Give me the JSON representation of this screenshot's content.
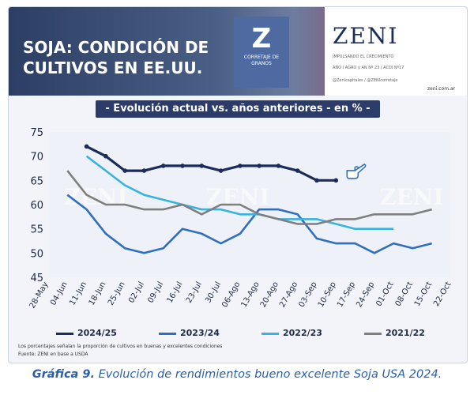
{
  "banner": {
    "title": "SOJA: CONDICIÓN DE\nCULTIVOS EN EE.UU.",
    "mid_logo": "Z",
    "mid_caption": "CORRETAJE DE GRANOS",
    "zeni_logo": "ZENI",
    "zeni_tagline": "IMPULSANDO EL CRECIMIENTO",
    "zeni_meta": "AÑO I AGRO y AN Nº 23 / ACDI Nº17",
    "zeni_social": "@Zenicapitales / @ZENIcorretaje",
    "zeni_url": "zeni.com.ar"
  },
  "chart_data": {
    "type": "line",
    "title": "- Evolución actual vs. años anteriores - en % -",
    "x": [
      "28-May",
      "04-Jun",
      "11-Jun",
      "18-Jun",
      "25-Jun",
      "02-Jul",
      "09-Jul",
      "16-Jul",
      "23-Jul",
      "30-Jul",
      "06-Ago",
      "13-Ago",
      "20-Ago",
      "27-Ago",
      "03-Sep",
      "10-Sep",
      "17-Sep",
      "24-Sep",
      "01-Oct",
      "08-Oct",
      "15-Oct",
      "22-Oct"
    ],
    "ylim": [
      45,
      75
    ],
    "yticks": [
      45,
      50,
      55,
      60,
      65,
      70,
      75
    ],
    "series": [
      {
        "name": "2024/25",
        "color": "#1a2c5a",
        "values": [
          null,
          null,
          72,
          70,
          67,
          67,
          68,
          68,
          68,
          67,
          68,
          68,
          68,
          67,
          65,
          65,
          null,
          null,
          null,
          null,
          null,
          null
        ]
      },
      {
        "name": "2023/24",
        "color": "#2e6fc0",
        "values": [
          null,
          62,
          59,
          54,
          51,
          50,
          51,
          55,
          54,
          52,
          54,
          59,
          59,
          58,
          53,
          52,
          52,
          50,
          52,
          51,
          52,
          null
        ]
      },
      {
        "name": "2022/23",
        "color": "#37b3e0",
        "values": [
          null,
          null,
          70,
          67,
          64,
          62,
          61,
          60,
          59,
          59,
          58,
          58,
          57,
          57,
          57,
          56,
          55,
          55,
          55,
          null,
          null,
          null
        ]
      },
      {
        "name": "2021/22",
        "color": "#7f7f7f",
        "values": [
          null,
          67,
          62,
          60,
          60,
          59,
          59,
          60,
          58,
          60,
          60,
          58,
          57,
          56,
          56,
          57,
          57,
          58,
          58,
          58,
          59,
          null
        ]
      }
    ]
  },
  "note": "Los porcentajes señalan la proporción de cultivos en buenas y excelentes condiciones",
  "source": "Fuente: ZENI en base a USDA",
  "watermark": "ZENI",
  "caption_bold": "Gráfica 9.",
  "caption_rest": " Evolución de rendimientos bueno excelente Soja USA 2024."
}
